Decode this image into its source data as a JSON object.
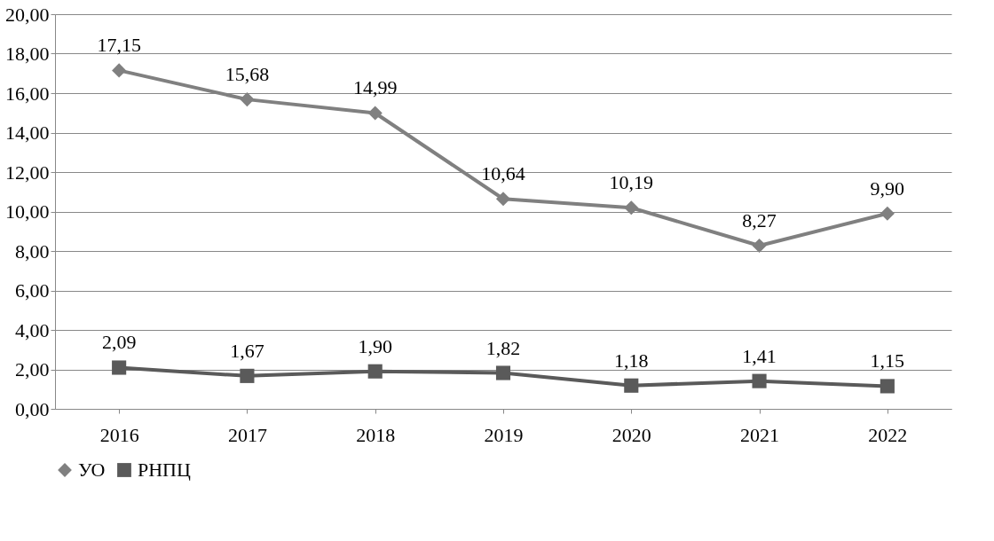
{
  "chart_data": {
    "type": "line",
    "categories": [
      "2016",
      "2017",
      "2018",
      "2019",
      "2020",
      "2021",
      "2022"
    ],
    "series": [
      {
        "name": "УО",
        "color": "#808080",
        "marker": "diamond",
        "values": [
          17.15,
          15.68,
          14.99,
          10.64,
          10.19,
          8.27,
          9.9
        ],
        "value_labels": [
          "17,15",
          "15,68",
          "14,99",
          "10,64",
          "10,19",
          "8,27",
          "9,90"
        ]
      },
      {
        "name": "РНПЦ",
        "color": "#5a5a5a",
        "marker": "square",
        "values": [
          2.09,
          1.67,
          1.9,
          1.82,
          1.18,
          1.41,
          1.15
        ],
        "value_labels": [
          "2,09",
          "1,67",
          "1,90",
          "1,82",
          "1,18",
          "1,41",
          "1,15"
        ]
      }
    ],
    "ylim": [
      0,
      20
    ],
    "yticks": [
      {
        "value": 0,
        "label": "0,00"
      },
      {
        "value": 2,
        "label": "2,00"
      },
      {
        "value": 4,
        "label": "4,00"
      },
      {
        "value": 6,
        "label": "6,00"
      },
      {
        "value": 8,
        "label": "8,00"
      },
      {
        "value": 10,
        "label": "10,00"
      },
      {
        "value": 12,
        "label": "12,00"
      },
      {
        "value": 14,
        "label": "14,00"
      },
      {
        "value": 16,
        "label": "16,00"
      },
      {
        "value": 18,
        "label": "18,00"
      },
      {
        "value": 20,
        "label": "20,00"
      }
    ],
    "grid": "y",
    "legend": "bottom",
    "line_style": "solid"
  }
}
